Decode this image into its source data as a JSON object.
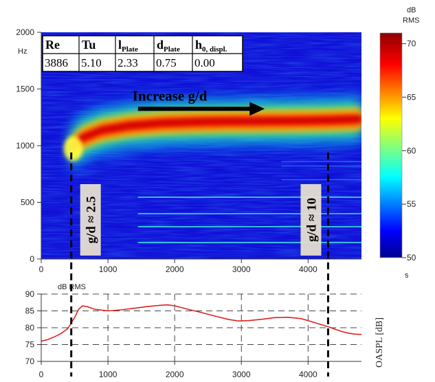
{
  "chart_data": [
    {
      "type": "heatmap",
      "title": "",
      "xlabel": "",
      "ylabel": "Hz",
      "xlim": [
        0,
        4800
      ],
      "ylim": [
        0,
        2000
      ],
      "x_ticks": [
        0,
        1000,
        2000,
        3000,
        4000
      ],
      "y_ticks": [
        0,
        500,
        1000,
        1500,
        2000
      ],
      "grid": false,
      "colorbar": {
        "label_top_1": "dB",
        "label_top_2": "RMS",
        "label_bottom": "s",
        "range": [
          50,
          71
        ],
        "ticks": [
          50,
          55,
          60,
          65,
          70
        ],
        "colormap": "jet"
      },
      "parameter_table": {
        "headers": [
          {
            "main": "Re",
            "sub": ""
          },
          {
            "main": "Tu",
            "sub": ""
          },
          {
            "main": "l",
            "sub": "Plate"
          },
          {
            "main": "d",
            "sub": "Plate"
          },
          {
            "main": "h",
            "sub": "0, displ."
          }
        ],
        "values": [
          "3886",
          "5.10",
          "2.33",
          "0.75",
          "0.00"
        ]
      },
      "ridge": {
        "x": [
          450,
          600,
          900,
          1300,
          1800,
          2300,
          2800,
          3300,
          3800,
          4300,
          4800
        ],
        "y": [
          980,
          1070,
          1140,
          1180,
          1205,
          1215,
          1220,
          1222,
          1225,
          1230,
          1240
        ]
      },
      "harmonic_lines": {
        "x_start": 1450,
        "x_end": 4800,
        "y": [
          145,
          285,
          400,
          545
        ]
      },
      "annotations": {
        "arrow_text": "Increase g/d",
        "arrow_x": [
          1450,
          3350
        ],
        "arrow_y": 1325,
        "marker_left": {
          "x": 450,
          "label": "g/d ≈ 2.5"
        },
        "marker_right": {
          "x": 4300,
          "label": "g/d ≈ 10"
        }
      }
    },
    {
      "type": "line",
      "title": "",
      "xlabel": "",
      "ylabel_top": "dB RMS",
      "ylabel_side": "OASPL [dB]",
      "xlim": [
        0,
        4800
      ],
      "ylim": [
        70,
        90
      ],
      "x_ticks": [
        0,
        1000,
        2000,
        3000,
        4000
      ],
      "y_ticks": [
        70,
        75,
        80,
        85,
        90
      ],
      "grid": true,
      "series": [
        {
          "color": "#e02020",
          "x": [
            0,
            100,
            200,
            300,
            400,
            500,
            560,
            620,
            700,
            800,
            1000,
            1200,
            1400,
            1600,
            1800,
            1900,
            2000,
            2100,
            2200,
            2400,
            2600,
            2800,
            2950,
            3100,
            3300,
            3500,
            3700,
            3900,
            4100,
            4300,
            4400,
            4500,
            4600,
            4700,
            4800
          ],
          "y": [
            76.0,
            76.5,
            77.3,
            78.3,
            79.8,
            83.0,
            85.5,
            86.5,
            86.2,
            85.5,
            85.0,
            85.3,
            85.8,
            86.3,
            86.7,
            86.8,
            86.5,
            86.0,
            85.5,
            84.5,
            83.5,
            82.5,
            82.0,
            82.1,
            82.5,
            83.0,
            83.1,
            82.7,
            81.5,
            80.3,
            79.6,
            78.9,
            78.4,
            78.1,
            78.0
          ]
        }
      ]
    }
  ]
}
